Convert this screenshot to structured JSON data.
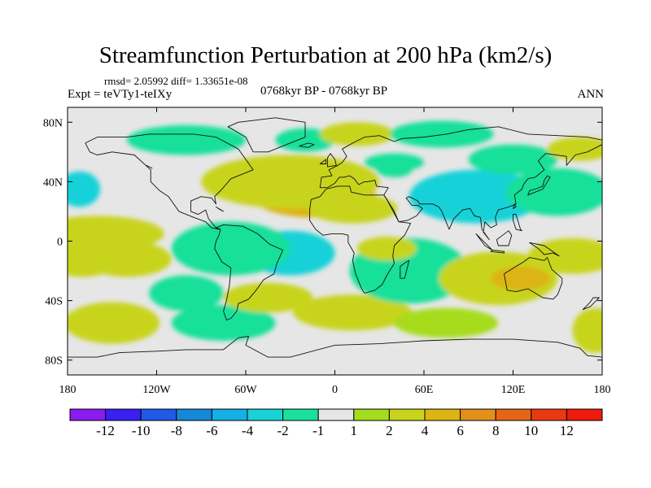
{
  "title": "Streamfunction Perturbation at 200 hPa (km2/s)",
  "stats": "rmsd= 2.05992 diff= 1.33651e-08",
  "experiment": "Expt = teVTy1-teIXy",
  "period": "0768kyr BP - 0768kyr BP",
  "season": "ANN",
  "chart_data": {
    "type": "heatmap",
    "title": "Streamfunction Perturbation at 200 hPa (km2/s)",
    "units": "km2/s",
    "xlim": [
      -180,
      180
    ],
    "ylim": [
      -90,
      90
    ],
    "x_ticks": [
      {
        "value": -180,
        "label": "180"
      },
      {
        "value": -120,
        "label": "120W"
      },
      {
        "value": -60,
        "label": "60W"
      },
      {
        "value": 0,
        "label": "0"
      },
      {
        "value": 60,
        "label": "60E"
      },
      {
        "value": 120,
        "label": "120E"
      },
      {
        "value": 180,
        "label": "180"
      }
    ],
    "y_ticks": [
      {
        "value": 80,
        "label": "80N"
      },
      {
        "value": 40,
        "label": "40N"
      },
      {
        "value": 0,
        "label": "0"
      },
      {
        "value": -40,
        "label": "40S"
      },
      {
        "value": -80,
        "label": "80S"
      }
    ],
    "colorbar": {
      "levels": [
        "-12",
        "-10",
        "-8",
        "-6",
        "-4",
        "-2",
        "-1",
        "1",
        "2",
        "4",
        "6",
        "8",
        "10",
        "12"
      ],
      "colors": [
        "#8a1cf0",
        "#3a1ff0",
        "#1f5ae6",
        "#1588d8",
        "#14b0e6",
        "#18d2d8",
        "#19e09a",
        "#e6e6e6",
        "#a6dc1e",
        "#c8d41c",
        "#dcb414",
        "#e2901a",
        "#e46614",
        "#e83a12",
        "#ee1a0e"
      ]
    },
    "anomalies": [
      {
        "lon": -22,
        "lat": 30,
        "value": 7,
        "rlon": 22,
        "rlat": 10
      },
      {
        "lon": -15,
        "lat": 32,
        "value": 5,
        "rlon": 42,
        "rlat": 16
      },
      {
        "lon": -30,
        "lat": 40,
        "value": 3,
        "rlon": 60,
        "rlat": 18
      },
      {
        "lon": 12,
        "lat": 22,
        "value": 2,
        "rlon": 30,
        "rlat": 10
      },
      {
        "lon": -55,
        "lat": 43,
        "value": 2,
        "rlon": 25,
        "rlat": 12
      },
      {
        "lon": -100,
        "lat": 68,
        "value": -2,
        "rlon": 40,
        "rlat": 10
      },
      {
        "lon": -20,
        "lat": 68,
        "value": -1.5,
        "rlon": 20,
        "rlat": 8
      },
      {
        "lon": 15,
        "lat": 72,
        "value": 3,
        "rlon": 25,
        "rlat": 8
      },
      {
        "lon": 72,
        "lat": 72,
        "value": -1.5,
        "rlon": 35,
        "rlat": 9
      },
      {
        "lon": 40,
        "lat": 53,
        "value": -2,
        "rlon": 20,
        "rlat": 6
      },
      {
        "lon": 40,
        "lat": 48,
        "value": -1.5,
        "rlon": 12,
        "rlat": 5
      },
      {
        "lon": 95,
        "lat": 30,
        "value": -5,
        "rlon": 24,
        "rlat": 9
      },
      {
        "lon": 95,
        "lat": 30,
        "value": -2.5,
        "rlon": 45,
        "rlat": 18
      },
      {
        "lon": 150,
        "lat": 33,
        "value": -4,
        "rlon": 25,
        "rlat": 10
      },
      {
        "lon": 150,
        "lat": 33,
        "value": -2,
        "rlon": 35,
        "rlat": 16
      },
      {
        "lon": 120,
        "lat": 55,
        "value": -1.2,
        "rlon": 30,
        "rlat": 10
      },
      {
        "lon": 165,
        "lat": 62,
        "value": 2,
        "rlon": 22,
        "rlat": 8
      },
      {
        "lon": -172,
        "lat": 35,
        "value": -3,
        "rlon": 14,
        "rlat": 12
      },
      {
        "lon": -160,
        "lat": 5,
        "value": 2,
        "rlon": 45,
        "rlat": 12
      },
      {
        "lon": -170,
        "lat": -12,
        "value": 3,
        "rlon": 25,
        "rlat": 12
      },
      {
        "lon": -140,
        "lat": -12,
        "value": 2,
        "rlon": 30,
        "rlat": 12
      },
      {
        "lon": -165,
        "lat": -55,
        "value": 3,
        "rlon": 18,
        "rlat": 10
      },
      {
        "lon": -150,
        "lat": -55,
        "value": 2,
        "rlon": 32,
        "rlat": 14
      },
      {
        "lon": -30,
        "lat": -8,
        "value": -3.5,
        "rlon": 30,
        "rlat": 15
      },
      {
        "lon": -70,
        "lat": -5,
        "value": -2,
        "rlon": 40,
        "rlat": 18
      },
      {
        "lon": -100,
        "lat": -35,
        "value": -2,
        "rlon": 25,
        "rlat": 12
      },
      {
        "lon": -75,
        "lat": -55,
        "value": -2,
        "rlon": 35,
        "rlat": 12
      },
      {
        "lon": -45,
        "lat": -38,
        "value": 2,
        "rlon": 30,
        "rlat": 10
      },
      {
        "lon": 12,
        "lat": -48,
        "value": 2,
        "rlon": 40,
        "rlat": 12
      },
      {
        "lon": 50,
        "lat": -25,
        "value": -4.5,
        "rlon": 20,
        "rlat": 12
      },
      {
        "lon": 50,
        "lat": -20,
        "value": -2,
        "rlon": 40,
        "rlat": 22
      },
      {
        "lon": 35,
        "lat": -5,
        "value": 2,
        "rlon": 20,
        "rlat": 8
      },
      {
        "lon": 110,
        "lat": -25,
        "value": 2.5,
        "rlon": 40,
        "rlat": 18
      },
      {
        "lon": 125,
        "lat": -25,
        "value": 4,
        "rlon": 20,
        "rlat": 8
      },
      {
        "lon": 160,
        "lat": -10,
        "value": 2,
        "rlon": 30,
        "rlat": 12
      },
      {
        "lon": 175,
        "lat": -60,
        "value": 3,
        "rlon": 15,
        "rlat": 15
      },
      {
        "lon": 75,
        "lat": -55,
        "value": 1.5,
        "rlon": 35,
        "rlat": 10
      }
    ]
  }
}
